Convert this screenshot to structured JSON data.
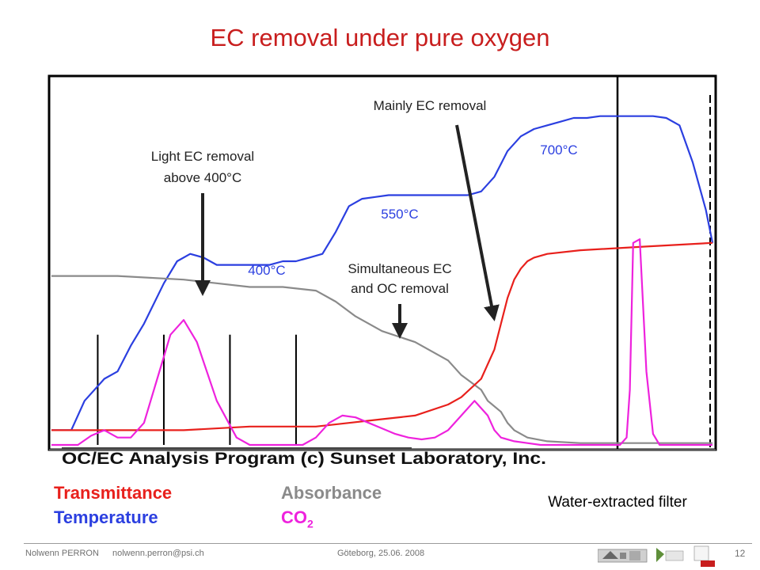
{
  "slide": {
    "title": "EC removal under pure oxygen",
    "note": "Water-extracted filter",
    "footer": {
      "author": "Nolwenn PERRON",
      "email": "nolwenn.perron@psi.ch",
      "place_date": "Göteborg, 25.06. 2008",
      "page": "12"
    },
    "logos": [
      "psi-logo",
      "lab-logo",
      "university-logo"
    ]
  },
  "legend": {
    "transmittance": "Transmittance",
    "temperature": "Temperature",
    "absorbance": "Absorbance",
    "co2_main": "CO",
    "co2_sub": "2"
  },
  "chart_data": {
    "type": "line",
    "title": "",
    "xlabel": "",
    "ylabel": "",
    "caption": "OC/EC Analysis Program (c) Sunset Laboratory, Inc.",
    "x_range": [
      0,
      100
    ],
    "y_range": [
      0,
      100
    ],
    "grid": false,
    "colors": {
      "transmittance": "#e8201c",
      "temperature": "#2b3fe0",
      "absorbance": "#8a8a8a",
      "co2": "#ee22dd"
    },
    "series": [
      {
        "key": "temperature",
        "name": "Temperature",
        "x": [
          0,
          3,
          5,
          8,
          10,
          12,
          14,
          17,
          19,
          21,
          23,
          25,
          27,
          29,
          31,
          33,
          35,
          37,
          39,
          41,
          43,
          45,
          47,
          49,
          51,
          53,
          55,
          57,
          59,
          61,
          63,
          65,
          67,
          69,
          71,
          73,
          75,
          77,
          79,
          81,
          83,
          85,
          87,
          89,
          91,
          93,
          95,
          97,
          99,
          100
        ],
        "y": [
          4,
          4,
          12,
          18,
          20,
          27,
          33,
          44,
          50,
          52,
          51,
          49,
          49,
          49,
          49,
          49,
          50,
          50,
          51,
          52,
          58,
          65,
          67,
          67.5,
          68,
          68,
          68,
          68,
          68,
          68,
          68,
          69,
          73,
          80,
          84,
          86,
          87,
          88,
          89,
          89,
          89.5,
          89.5,
          89.5,
          89.5,
          89.5,
          89,
          87,
          77,
          64,
          55
        ]
      },
      {
        "key": "absorbance",
        "name": "Absorbance",
        "x": [
          0,
          10,
          20,
          25,
          30,
          35,
          40,
          43,
          46,
          50,
          55,
          60,
          62,
          65,
          66,
          68,
          69,
          70,
          72,
          75,
          80,
          85,
          90,
          100
        ],
        "y": [
          46,
          46,
          45,
          44,
          43,
          43,
          42,
          39,
          35,
          31,
          28,
          23,
          19,
          15,
          12,
          9,
          6,
          4,
          2,
          1,
          0.5,
          0.5,
          0.5,
          0.5
        ]
      },
      {
        "key": "transmittance",
        "name": "Transmittance",
        "x": [
          0,
          20,
          30,
          40,
          45,
          50,
          55,
          60,
          62,
          65,
          67,
          68,
          69,
          70,
          71,
          72,
          73,
          75,
          80,
          90,
          100
        ],
        "y": [
          4,
          4,
          5,
          5,
          6,
          7,
          8,
          11,
          13,
          18,
          26,
          33,
          40,
          45,
          48,
          50,
          51,
          52,
          53,
          54,
          55
        ]
      },
      {
        "key": "co2",
        "name": "CO2",
        "x": [
          0,
          4,
          6,
          8,
          10,
          12,
          14,
          16,
          18,
          20,
          22,
          25,
          28,
          30,
          33,
          36,
          38,
          40,
          42,
          44,
          46,
          48,
          50,
          52,
          54,
          56,
          58,
          60,
          62,
          64,
          66,
          67,
          68,
          70,
          72,
          74,
          76,
          78,
          80,
          82,
          84,
          85,
          86,
          87,
          87.5,
          88,
          89,
          90,
          91,
          92,
          100
        ],
        "y": [
          0,
          0,
          2.5,
          4,
          2,
          2,
          6,
          18,
          30,
          34,
          28,
          12,
          2,
          0,
          0,
          0,
          0,
          2,
          6,
          8,
          7.5,
          6,
          4.5,
          3,
          2,
          1.5,
          2,
          4,
          8,
          12,
          8,
          4,
          2,
          1,
          0.5,
          0,
          0,
          0,
          0,
          0,
          0,
          0,
          0,
          2,
          15,
          55,
          56,
          20,
          3,
          0,
          0
        ]
      }
    ],
    "markers": [
      {
        "x": 7,
        "y_top": 30
      },
      {
        "x": 17,
        "y_top": 30
      },
      {
        "x": 27,
        "y_top": 30
      },
      {
        "x": 37,
        "y_top": 30
      }
    ],
    "annotations": [
      {
        "text": "400°C",
        "color": "#2b3fe0"
      },
      {
        "text": "550°C",
        "color": "#2b3fe0"
      },
      {
        "text": "700°C",
        "color": "#2b3fe0"
      },
      {
        "text": "Light EC removal",
        "text2": "above 400°C",
        "color": "#222222"
      },
      {
        "text": "Mainly EC removal",
        "color": "#222222"
      },
      {
        "text": "Simultaneous EC",
        "text2": "and OC removal",
        "color": "#222222"
      }
    ]
  }
}
